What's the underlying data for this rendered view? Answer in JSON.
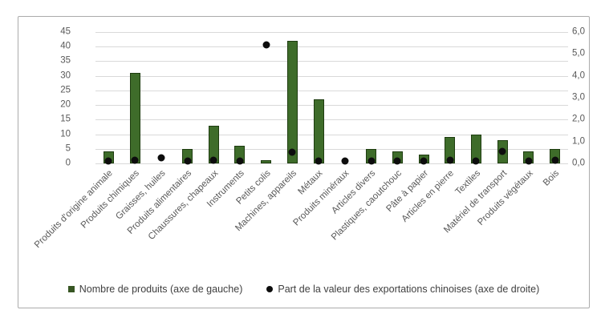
{
  "chart_data": {
    "type": "bar",
    "title": "",
    "categories": [
      "Produits d'origine animale",
      "Produits chimiques",
      "Graisses, huiles",
      "Produits alimentaires",
      "Chaussures, chapeaux",
      "Instruments",
      "Petits colis",
      "Machines, appareils",
      "Métaux",
      "Produits minéraux",
      "Articles divers",
      "Plastiques, caoutchouc",
      "Pâte à papier",
      "Articles en pierre",
      "Textiles",
      "Matériel de transport",
      "Produits végétaux",
      "Bois"
    ],
    "series": [
      {
        "name": "Nombre de produits (axe de gauche)",
        "type": "bar",
        "axis": "left",
        "color": "#3e6c2a",
        "values": [
          4,
          31,
          0,
          5,
          13,
          6,
          1,
          42,
          22,
          0,
          5,
          4,
          3,
          9,
          10,
          8,
          4,
          5
        ]
      },
      {
        "name": "Part de la valeur des exportations chinoises (axe de droite)",
        "type": "scatter",
        "axis": "right",
        "color": "#0d0d0d",
        "values": [
          0.1,
          0.15,
          0.25,
          0.1,
          0.15,
          0.1,
          5.4,
          0.5,
          0.1,
          0.1,
          0.1,
          0.1,
          0.1,
          0.15,
          0.1,
          0.55,
          0.1,
          0.15
        ]
      }
    ],
    "left_axis": {
      "min": 0,
      "max": 45,
      "step": 5,
      "ticks": [
        "0",
        "5",
        "10",
        "15",
        "20",
        "25",
        "30",
        "35",
        "40",
        "45"
      ]
    },
    "right_axis": {
      "min": 0,
      "max": 6,
      "step": 1,
      "ticks": [
        "0,0",
        "1,0",
        "2,0",
        "3,0",
        "4,0",
        "5,0",
        "6,0"
      ]
    },
    "grid": true,
    "legend_position": "bottom"
  },
  "colors": {
    "bar_fill": "#3e6c2a",
    "bar_border": "#1e3c10",
    "dot": "#0d0d0d",
    "gridline": "#d9d9d9",
    "axis_text": "#595959",
    "frame_border": "#ababab"
  }
}
